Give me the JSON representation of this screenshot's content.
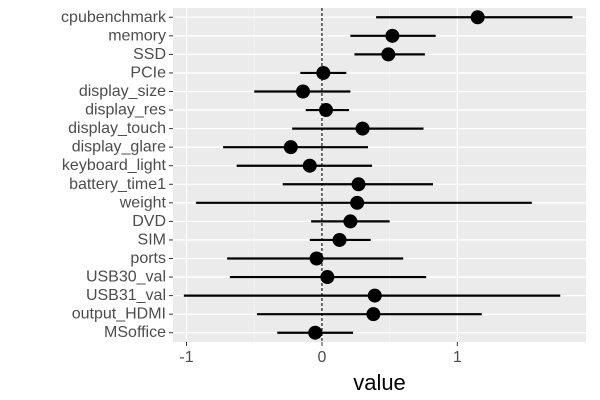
{
  "chart_data": {
    "type": "scatter",
    "subtype": "coefficient-plot",
    "title": "",
    "xlabel": "value",
    "ylabel": "",
    "xlim": [
      -1.1,
      1.95
    ],
    "xticks": [
      -1,
      0,
      1
    ],
    "xtick_labels": [
      "-1",
      "0",
      "1"
    ],
    "reference_line": 0,
    "grid": true,
    "colors": {
      "panel_background": "#ebebeb",
      "grid_major": "#ffffff",
      "grid_minor": "#f4f4f4",
      "point": "#000000",
      "interval": "#000000"
    },
    "categories": [
      "cpubenchmark",
      "memory",
      "SSD",
      "PCIe",
      "display_size",
      "display_res",
      "display_touch",
      "display_glare",
      "keyboard_light",
      "battery_time1",
      "weight",
      "DVD",
      "SIM",
      "ports",
      "USB30_val",
      "USB31_val",
      "output_HDMI",
      "MSoffice"
    ],
    "series": [
      {
        "values": [
          1.15,
          0.52,
          0.49,
          0.01,
          -0.14,
          0.03,
          0.3,
          -0.23,
          -0.09,
          0.27,
          0.26,
          0.21,
          0.13,
          -0.04,
          0.04,
          0.39,
          0.38,
          -0.05
        ],
        "lower": [
          0.4,
          0.21,
          0.24,
          -0.16,
          -0.5,
          -0.12,
          -0.22,
          -0.73,
          -0.63,
          -0.29,
          -0.93,
          -0.08,
          -0.09,
          -0.7,
          -0.68,
          -1.02,
          -0.48,
          -0.33
        ],
        "upper": [
          1.85,
          0.84,
          0.76,
          0.18,
          0.21,
          0.2,
          0.75,
          0.34,
          0.37,
          0.82,
          1.55,
          0.5,
          0.36,
          0.6,
          0.77,
          1.76,
          1.18,
          0.23
        ]
      }
    ]
  }
}
